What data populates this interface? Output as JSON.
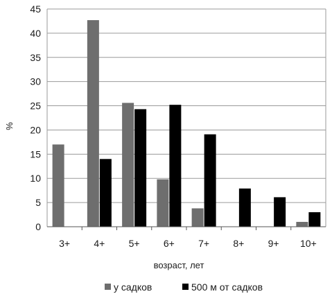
{
  "chart_data": {
    "type": "bar",
    "title": "",
    "xlabel": "возраст, лет",
    "ylabel": "%",
    "categories": [
      "3+",
      "4+",
      "5+",
      "6+",
      "7+",
      "8+",
      "9+",
      "10+"
    ],
    "series": [
      {
        "name": "у садков",
        "color": "#6e6e6e",
        "values": [
          17,
          42.7,
          25.6,
          9.8,
          3.8,
          0,
          0,
          1
        ]
      },
      {
        "name": "500 м от садков",
        "color": "#000000",
        "values": [
          0,
          14,
          24.3,
          25.2,
          19.1,
          7.9,
          6.1,
          3
        ]
      }
    ],
    "ylim": [
      0,
      45
    ],
    "yticks": [
      0,
      5,
      10,
      15,
      20,
      25,
      30,
      35,
      40,
      45
    ],
    "grid": true,
    "legend": "bottom"
  }
}
